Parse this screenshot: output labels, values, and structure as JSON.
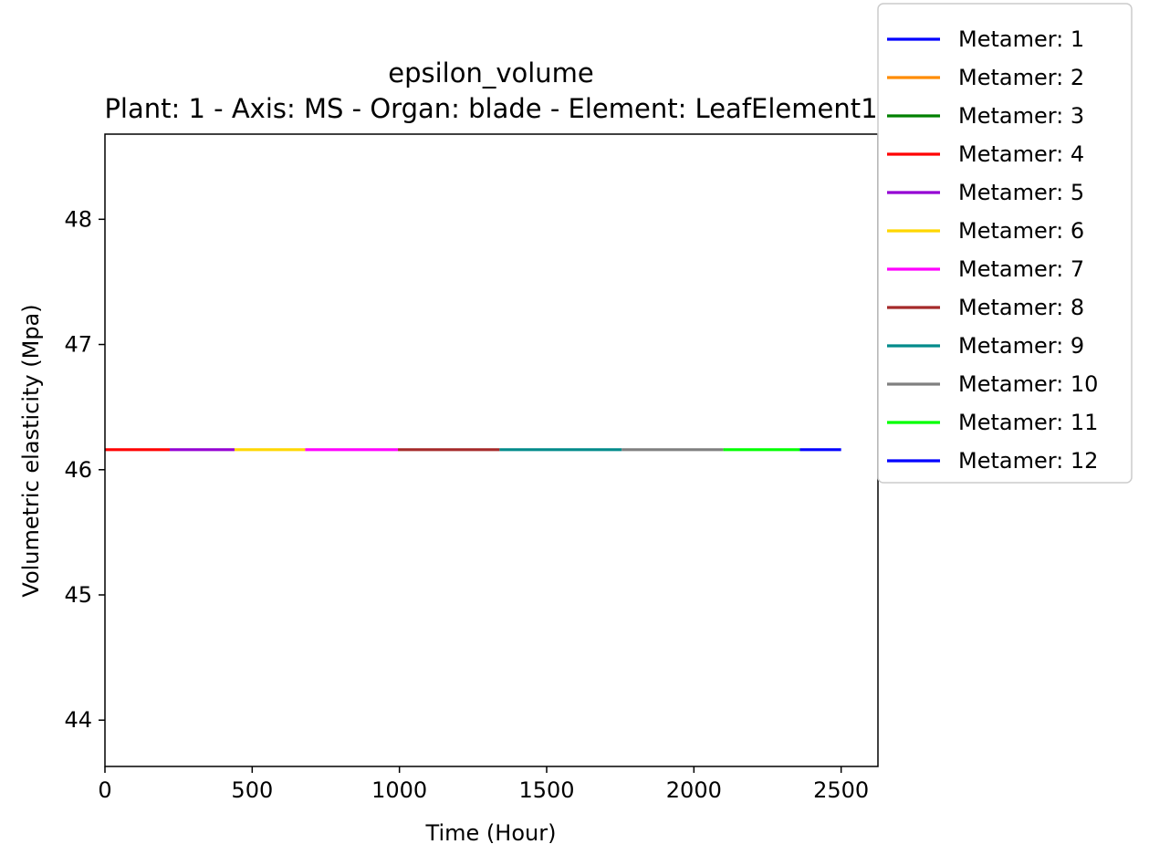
{
  "chart_data": {
    "type": "line",
    "title": "epsilon_volume",
    "subtitle": "Plant: 1 - Axis: MS - Organ: blade - Element: LeafElement1",
    "xlabel": "Time (Hour)",
    "ylabel": "Volumetric elasticity (Mpa)",
    "xlim": [
      0,
      2625
    ],
    "ylim": [
      43.63,
      48.68
    ],
    "xticks": [
      0,
      500,
      1000,
      1500,
      2000,
      2500
    ],
    "yticks": [
      44,
      45,
      46,
      47,
      48
    ],
    "grid": false,
    "legend_position": "upper-right-outside",
    "series": [
      {
        "name": "Metamer: 1",
        "color": "#0000ff",
        "x": [],
        "y": []
      },
      {
        "name": "Metamer: 2",
        "color": "#ff8c00",
        "x": [],
        "y": []
      },
      {
        "name": "Metamer: 3",
        "color": "#008000",
        "x": [],
        "y": []
      },
      {
        "name": "Metamer: 4",
        "color": "#ff0000",
        "x": [
          0,
          220
        ],
        "y": [
          46.16,
          46.16
        ]
      },
      {
        "name": "Metamer: 5",
        "color": "#9400d3",
        "x": [
          220,
          440
        ],
        "y": [
          46.16,
          46.16
        ]
      },
      {
        "name": "Metamer: 6",
        "color": "#ffd700",
        "x": [
          440,
          680
        ],
        "y": [
          46.16,
          46.16
        ]
      },
      {
        "name": "Metamer: 7",
        "color": "#ff00ff",
        "x": [
          680,
          995
        ],
        "y": [
          46.16,
          46.16
        ]
      },
      {
        "name": "Metamer: 8",
        "color": "#a52a2a",
        "x": [
          995,
          1340
        ],
        "y": [
          46.16,
          46.16
        ]
      },
      {
        "name": "Metamer: 9",
        "color": "#008b8b",
        "x": [
          1340,
          1755
        ],
        "y": [
          46.16,
          46.16
        ]
      },
      {
        "name": "Metamer: 10",
        "color": "#808080",
        "x": [
          1755,
          2100
        ],
        "y": [
          46.16,
          46.16
        ]
      },
      {
        "name": "Metamer: 11",
        "color": "#00ff00",
        "x": [
          2100,
          2360
        ],
        "y": [
          46.16,
          46.16
        ]
      },
      {
        "name": "Metamer: 12",
        "color": "#0000ff",
        "x": [
          2360,
          2500
        ],
        "y": [
          46.16,
          46.16
        ]
      }
    ]
  }
}
